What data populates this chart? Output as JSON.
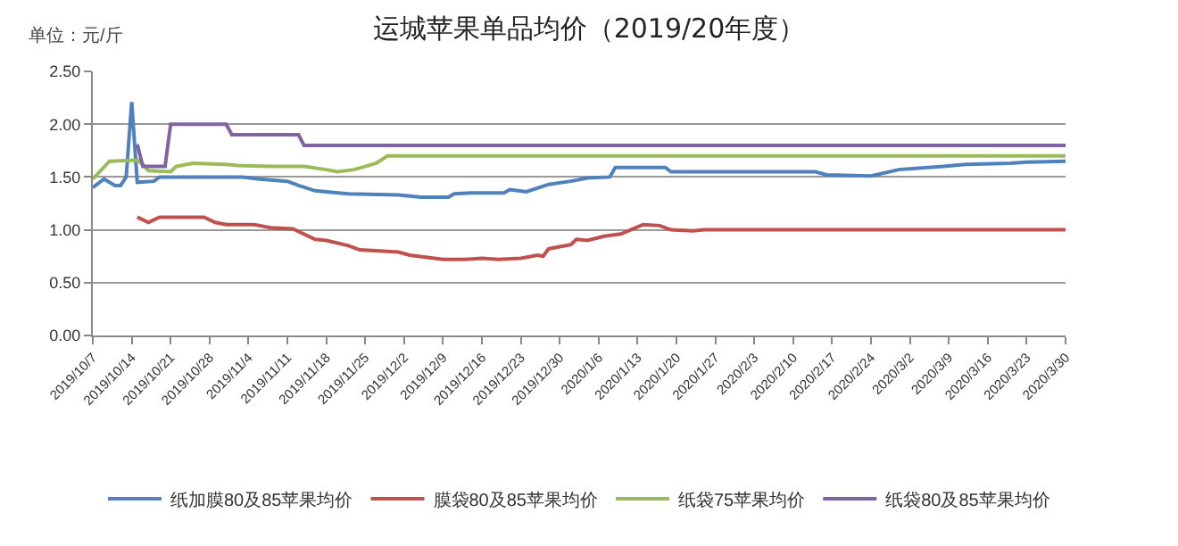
{
  "chart_data": {
    "type": "line",
    "title": "运城苹果单品均价（2019/20年度）",
    "annotations": [
      "单位：元/斤"
    ],
    "xlim": [
      "2019-10-07",
      "2020-03-30"
    ],
    "xticks": [
      {
        "value": "2019-10-07",
        "label": "2019/10/7"
      },
      {
        "value": "2019-10-14",
        "label": "2019/10/14"
      },
      {
        "value": "2019-10-21",
        "label": "2019/10/21"
      },
      {
        "value": "2019-10-28",
        "label": "2019/10/28"
      },
      {
        "value": "2019-11-04",
        "label": "2019/11/4"
      },
      {
        "value": "2019-11-11",
        "label": "2019/11/11"
      },
      {
        "value": "2019-11-18",
        "label": "2019/11/18"
      },
      {
        "value": "2019-11-25",
        "label": "2019/11/25"
      },
      {
        "value": "2019-12-02",
        "label": "2019/12/2"
      },
      {
        "value": "2019-12-09",
        "label": "2019/12/9"
      },
      {
        "value": "2019-12-16",
        "label": "2019/12/16"
      },
      {
        "value": "2019-12-23",
        "label": "2019/12/23"
      },
      {
        "value": "2019-12-30",
        "label": "2019/12/30"
      },
      {
        "value": "2020-01-06",
        "label": "2020/1/6"
      },
      {
        "value": "2020-01-13",
        "label": "2020/1/13"
      },
      {
        "value": "2020-01-20",
        "label": "2020/1/20"
      },
      {
        "value": "2020-01-27",
        "label": "2020/1/27"
      },
      {
        "value": "2020-02-03",
        "label": "2020/2/3"
      },
      {
        "value": "2020-02-10",
        "label": "2020/2/10"
      },
      {
        "value": "2020-02-17",
        "label": "2020/2/17"
      },
      {
        "value": "2020-02-24",
        "label": "2020/2/24"
      },
      {
        "value": "2020-03-02",
        "label": "2020/3/2"
      },
      {
        "value": "2020-03-09",
        "label": "2020/3/9"
      },
      {
        "value": "2020-03-16",
        "label": "2020/3/16"
      },
      {
        "value": "2020-03-23",
        "label": "2020/3/23"
      },
      {
        "value": "2020-03-30",
        "label": "2020/3/30"
      }
    ],
    "ylim": [
      0,
      2.5
    ],
    "yticks": [
      {
        "value": 0,
        "label": "0.00"
      },
      {
        "value": 0.5,
        "label": "0.50"
      },
      {
        "value": 1,
        "label": "1.00"
      },
      {
        "value": 1.5,
        "label": "1.50"
      },
      {
        "value": 2,
        "label": "2.00"
      },
      {
        "value": 2.5,
        "label": "2.50"
      }
    ],
    "grid": "y",
    "legend": "bottom",
    "marker": "none",
    "line_style": "solid",
    "series": [
      {
        "name": "纸加膜80及85苹果均价",
        "color": "#4f81bd",
        "x": [
          "2019-10-07",
          "2019-10-09",
          "2019-10-11",
          "2019-10-12",
          "2019-10-13",
          "2019-10-14",
          "2019-10-15",
          "2019-10-18",
          "2019-10-19",
          "2019-11-03",
          "2019-11-06",
          "2019-11-11",
          "2019-11-13",
          "2019-11-16",
          "2019-11-18",
          "2019-11-22",
          "2019-12-01",
          "2019-12-05",
          "2019-12-10",
          "2019-12-11",
          "2019-12-14",
          "2019-12-20",
          "2019-12-21",
          "2019-12-24",
          "2019-12-28",
          "2020-01-01",
          "2020-01-04",
          "2020-01-08",
          "2020-01-09",
          "2020-01-18",
          "2020-01-19",
          "2020-02-14",
          "2020-02-16",
          "2020-02-24",
          "2020-02-29",
          "2020-03-08",
          "2020-03-12",
          "2020-03-20",
          "2020-03-23",
          "2020-03-30"
        ],
        "values": [
          1.4,
          1.48,
          1.42,
          1.42,
          1.5,
          2.21,
          1.45,
          1.46,
          1.5,
          1.5,
          1.48,
          1.46,
          1.42,
          1.37,
          1.36,
          1.34,
          1.33,
          1.31,
          1.31,
          1.34,
          1.35,
          1.35,
          1.38,
          1.36,
          1.43,
          1.46,
          1.49,
          1.5,
          1.59,
          1.59,
          1.55,
          1.55,
          1.52,
          1.51,
          1.57,
          1.6,
          1.62,
          1.63,
          1.64,
          1.65
        ]
      },
      {
        "name": "膜袋80及85苹果均价",
        "color": "#c0504d",
        "x": [
          "2019-10-15",
          "2019-10-17",
          "2019-10-19",
          "2019-10-27",
          "2019-10-29",
          "2019-10-31",
          "2019-11-05",
          "2019-11-08",
          "2019-11-12",
          "2019-11-16",
          "2019-11-18",
          "2019-11-22",
          "2019-11-24",
          "2019-12-01",
          "2019-12-03",
          "2019-12-09",
          "2019-12-13",
          "2019-12-16",
          "2019-12-19",
          "2019-12-23",
          "2019-12-26",
          "2019-12-27",
          "2019-12-28",
          "2019-12-30",
          "2020-01-01",
          "2020-01-02",
          "2020-01-04",
          "2020-01-07",
          "2020-01-10",
          "2020-01-14",
          "2020-01-17",
          "2020-01-19",
          "2020-01-23",
          "2020-01-25",
          "2020-03-30"
        ],
        "values": [
          1.12,
          1.07,
          1.12,
          1.12,
          1.07,
          1.05,
          1.05,
          1.02,
          1.01,
          0.91,
          0.9,
          0.85,
          0.81,
          0.79,
          0.76,
          0.72,
          0.72,
          0.73,
          0.72,
          0.73,
          0.76,
          0.75,
          0.82,
          0.84,
          0.86,
          0.91,
          0.9,
          0.94,
          0.96,
          1.05,
          1.04,
          1.0,
          0.99,
          1.0,
          1.0
        ]
      },
      {
        "name": "纸袋75苹果均价",
        "color": "#9bbb59",
        "x": [
          "2019-10-07",
          "2019-10-10",
          "2019-10-15",
          "2019-10-16",
          "2019-10-17",
          "2019-10-21",
          "2019-10-22",
          "2019-10-25",
          "2019-10-31",
          "2019-11-02",
          "2019-11-08",
          "2019-11-14",
          "2019-11-18",
          "2019-11-20",
          "2019-11-23",
          "2019-11-25",
          "2019-11-27",
          "2019-11-29",
          "2020-03-30"
        ],
        "values": [
          1.48,
          1.65,
          1.66,
          1.62,
          1.56,
          1.55,
          1.6,
          1.63,
          1.62,
          1.61,
          1.6,
          1.6,
          1.57,
          1.55,
          1.57,
          1.6,
          1.63,
          1.7,
          1.7
        ]
      },
      {
        "name": "纸袋80及85苹果均价",
        "color": "#8064a2",
        "x": [
          "2019-10-15",
          "2019-10-16",
          "2019-10-20",
          "2019-10-21",
          "2019-10-31",
          "2019-11-01",
          "2019-11-13",
          "2019-11-14",
          "2020-03-30"
        ],
        "values": [
          1.81,
          1.6,
          1.6,
          2.0,
          2.0,
          1.9,
          1.9,
          1.8,
          1.8
        ]
      }
    ]
  }
}
